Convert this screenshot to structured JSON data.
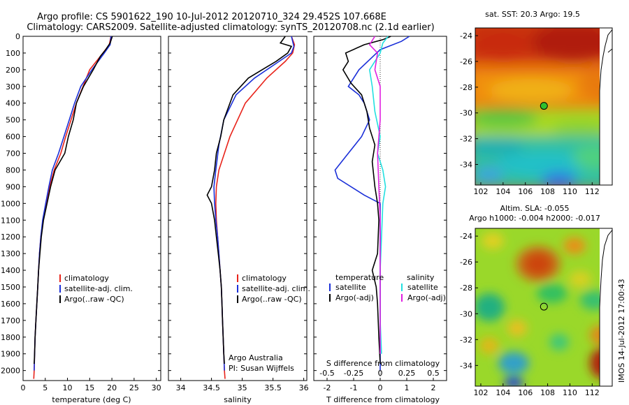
{
  "header": {
    "line1": "Argo profile: CS 5901622_190 10-Jul-2012 20120710_324 29.452S 107.668E",
    "line2": "Climatology: CARS2009. Satellite-adjusted climatology: synTS_20120708.nc (2.1d earlier)"
  },
  "side_stamp": "IMOS 14-Jul-2012 17:00:43",
  "colors": {
    "climatology": "#e8231a",
    "satellite": "#1a2fd8",
    "argo": "#000000",
    "sal_satellite": "#22e0e0",
    "sal_argo": "#e020e0"
  },
  "chart_data": [
    {
      "type": "line",
      "panel": "temperature",
      "xlabel": "temperature (deg C)",
      "xlim": [
        0,
        31
      ],
      "xticks": [
        0,
        5,
        10,
        15,
        20,
        25,
        30
      ],
      "ylim": [
        0,
        2060
      ],
      "yticks": [
        0,
        100,
        200,
        300,
        400,
        500,
        600,
        700,
        800,
        900,
        1000,
        1100,
        1200,
        1300,
        1400,
        1500,
        1600,
        1700,
        1800,
        1900,
        2000
      ],
      "y_reversed": true,
      "legend": [
        "climatology",
        "satellite-adj. clim.",
        "Argo(..raw -QC)"
      ],
      "series": [
        {
          "name": "climatology",
          "color": "climatology",
          "points": [
            [
              19.8,
              0
            ],
            [
              19.4,
              50
            ],
            [
              18.0,
              100
            ],
            [
              15.0,
              200
            ],
            [
              13.5,
              300
            ],
            [
              12.0,
              400
            ],
            [
              10.8,
              500
            ],
            [
              9.6,
              600
            ],
            [
              8.5,
              700
            ],
            [
              7.0,
              800
            ],
            [
              6.0,
              900
            ],
            [
              5.2,
              1000
            ],
            [
              4.5,
              1100
            ],
            [
              4.0,
              1200
            ],
            [
              3.7,
              1300
            ],
            [
              3.5,
              1400
            ],
            [
              3.3,
              1500
            ],
            [
              3.1,
              1600
            ],
            [
              2.9,
              1700
            ],
            [
              2.7,
              1800
            ],
            [
              2.6,
              1900
            ],
            [
              2.5,
              2000
            ],
            [
              2.4,
              2050
            ]
          ]
        },
        {
          "name": "satellite-adj. clim.",
          "color": "satellite",
          "points": [
            [
              19.8,
              0
            ],
            [
              19.6,
              50
            ],
            [
              18.3,
              100
            ],
            [
              15.5,
              200
            ],
            [
              13.0,
              300
            ],
            [
              11.6,
              400
            ],
            [
              10.4,
              500
            ],
            [
              9.2,
              600
            ],
            [
              8.0,
              700
            ],
            [
              6.6,
              800
            ],
            [
              5.8,
              900
            ],
            [
              5.1,
              1000
            ],
            [
              4.4,
              1100
            ],
            [
              4.0,
              1200
            ],
            [
              3.7,
              1300
            ],
            [
              3.5,
              1400
            ],
            [
              3.3,
              1500
            ],
            [
              3.1,
              1600
            ],
            [
              2.9,
              1700
            ],
            [
              2.7,
              1800
            ],
            [
              2.6,
              1900
            ],
            [
              2.5,
              2000
            ]
          ]
        },
        {
          "name": "Argo(..raw -QC)",
          "color": "argo",
          "points": [
            [
              20.1,
              0
            ],
            [
              19.6,
              40
            ],
            [
              18.6,
              80
            ],
            [
              17.4,
              120
            ],
            [
              15.8,
              200
            ],
            [
              13.6,
              300
            ],
            [
              12.0,
              400
            ],
            [
              11.3,
              500
            ],
            [
              10.2,
              600
            ],
            [
              9.4,
              700
            ],
            [
              7.2,
              800
            ],
            [
              6.2,
              900
            ],
            [
              5.4,
              1000
            ],
            [
              4.6,
              1100
            ],
            [
              4.1,
              1200
            ],
            [
              3.8,
              1300
            ],
            [
              3.5,
              1400
            ],
            [
              3.3,
              1500
            ],
            [
              3.1,
              1600
            ],
            [
              2.9,
              1700
            ],
            [
              2.7,
              1800
            ],
            [
              2.6,
              1900
            ],
            [
              2.5,
              1960
            ]
          ]
        }
      ]
    },
    {
      "type": "line",
      "panel": "salinity",
      "xlabel": "salinity",
      "xlim": [
        33.8,
        36.05
      ],
      "xticks": [
        34,
        34.5,
        35,
        35.5,
        36
      ],
      "ylim": [
        0,
        2060
      ],
      "y_reversed": true,
      "legend": [
        "climatology",
        "satellite-adj. clim.",
        "Argo(..raw -QC)"
      ],
      "annotation": [
        "Argo Australia",
        "PI: Susan Wijffels"
      ],
      "series": [
        {
          "name": "climatology",
          "color": "climatology",
          "points": [
            [
              35.8,
              0
            ],
            [
              35.85,
              50
            ],
            [
              35.82,
              100
            ],
            [
              35.7,
              150
            ],
            [
              35.4,
              250
            ],
            [
              35.05,
              400
            ],
            [
              34.8,
              600
            ],
            [
              34.62,
              800
            ],
            [
              34.58,
              900
            ],
            [
              34.57,
              1000
            ],
            [
              34.58,
              1100
            ],
            [
              34.6,
              1200
            ],
            [
              34.62,
              1300
            ],
            [
              34.64,
              1400
            ],
            [
              34.66,
              1500
            ],
            [
              34.67,
              1600
            ],
            [
              34.68,
              1700
            ],
            [
              34.69,
              1800
            ],
            [
              34.7,
              1900
            ],
            [
              34.71,
              2000
            ],
            [
              34.72,
              2050
            ]
          ]
        },
        {
          "name": "satellite-adj. clim.",
          "color": "satellite",
          "points": [
            [
              35.8,
              0
            ],
            [
              35.84,
              60
            ],
            [
              35.8,
              100
            ],
            [
              35.6,
              150
            ],
            [
              35.2,
              250
            ],
            [
              34.9,
              350
            ],
            [
              34.7,
              500
            ],
            [
              34.62,
              650
            ],
            [
              34.57,
              800
            ],
            [
              34.54,
              900
            ],
            [
              34.55,
              1000
            ],
            [
              34.57,
              1100
            ],
            [
              34.6,
              1200
            ],
            [
              34.62,
              1300
            ],
            [
              34.64,
              1400
            ],
            [
              34.66,
              1500
            ],
            [
              34.67,
              1600
            ],
            [
              34.68,
              1700
            ],
            [
              34.69,
              1800
            ],
            [
              34.7,
              1900
            ],
            [
              34.71,
              2000
            ]
          ]
        },
        {
          "name": "Argo(..raw -QC)",
          "color": "argo",
          "points": [
            [
              35.7,
              0
            ],
            [
              35.62,
              40
            ],
            [
              35.8,
              60
            ],
            [
              35.74,
              100
            ],
            [
              35.55,
              150
            ],
            [
              35.1,
              250
            ],
            [
              34.85,
              350
            ],
            [
              34.7,
              500
            ],
            [
              34.65,
              600
            ],
            [
              34.58,
              700
            ],
            [
              34.55,
              800
            ],
            [
              34.5,
              900
            ],
            [
              34.43,
              950
            ],
            [
              34.5,
              1000
            ],
            [
              34.55,
              1100
            ],
            [
              34.58,
              1200
            ],
            [
              34.61,
              1300
            ],
            [
              34.64,
              1400
            ],
            [
              34.66,
              1500
            ],
            [
              34.67,
              1600
            ],
            [
              34.68,
              1700
            ],
            [
              34.69,
              1800
            ],
            [
              34.7,
              1900
            ],
            [
              34.71,
              1960
            ]
          ]
        }
      ]
    },
    {
      "type": "line",
      "panel": "difference",
      "xlabel_bottom": "T difference from climatology",
      "xlabel_top": "S difference from climatology",
      "xlim": [
        -2.5,
        2.5
      ],
      "xticks": [
        -2,
        -1,
        0,
        1,
        2
      ],
      "xticks_top": [
        -0.5,
        -0.25,
        0,
        0.25,
        0.5
      ],
      "ylim": [
        0,
        2060
      ],
      "y_reversed": true,
      "zero_line": true,
      "legend_left_title": "temperature",
      "legend_right_title": "salinity",
      "legend": [
        "satellite",
        "Argo(-adj)",
        "satellite",
        "Argo(-adj)"
      ],
      "series": [
        {
          "name": "temperature satellite",
          "color": "satellite",
          "points": [
            [
              1.1,
              0
            ],
            [
              0.8,
              30
            ],
            [
              0.0,
              80
            ],
            [
              -0.8,
              200
            ],
            [
              -1.2,
              300
            ],
            [
              -0.8,
              350
            ],
            [
              -0.6,
              400
            ],
            [
              -0.4,
              500
            ],
            [
              -0.7,
              600
            ],
            [
              -1.2,
              700
            ],
            [
              -1.7,
              800
            ],
            [
              -1.6,
              850
            ],
            [
              -0.6,
              950
            ],
            [
              0.0,
              1000
            ],
            [
              0.0,
              2000
            ]
          ]
        },
        {
          "name": "temperature Argo(-adj)",
          "color": "argo",
          "points": [
            [
              0.4,
              0
            ],
            [
              0.1,
              20
            ],
            [
              -0.6,
              50
            ],
            [
              -1.3,
              100
            ],
            [
              -1.2,
              150
            ],
            [
              -1.4,
              200
            ],
            [
              -1.1,
              280
            ],
            [
              -0.7,
              350
            ],
            [
              -0.5,
              450
            ],
            [
              -0.4,
              550
            ],
            [
              -0.2,
              650
            ],
            [
              -0.3,
              750
            ],
            [
              -0.2,
              900
            ],
            [
              -0.1,
              1000
            ],
            [
              -0.05,
              1100
            ],
            [
              -0.1,
              1300
            ],
            [
              -0.3,
              1400
            ],
            [
              -0.15,
              1500
            ],
            [
              -0.1,
              1600
            ],
            [
              -0.05,
              1800
            ],
            [
              0.0,
              1960
            ]
          ]
        },
        {
          "name": "salinity satellite",
          "color": "sal_satellite",
          "points": [
            [
              0.3,
              0
            ],
            [
              0.1,
              40
            ],
            [
              0.0,
              100
            ],
            [
              -0.4,
              200
            ],
            [
              -0.3,
              300
            ],
            [
              -0.2,
              450
            ],
            [
              0.0,
              600
            ],
            [
              -0.1,
              700
            ],
            [
              0.1,
              800
            ],
            [
              0.2,
              900
            ],
            [
              0.1,
              1000
            ],
            [
              0.05,
              1200
            ],
            [
              0.0,
              1400
            ],
            [
              0.0,
              1700
            ],
            [
              0.05,
              1900
            ]
          ]
        },
        {
          "name": "salinity Argo(-adj)",
          "color": "sal_argo",
          "points": [
            [
              -0.2,
              0
            ],
            [
              -0.4,
              50
            ],
            [
              -0.1,
              100
            ],
            [
              -0.2,
              200
            ],
            [
              0.0,
              300
            ],
            [
              0.0,
              500
            ],
            [
              -0.1,
              700
            ],
            [
              -0.05,
              900
            ],
            [
              0.0,
              1100
            ],
            [
              0.0,
              1400
            ],
            [
              0.0,
              1900
            ]
          ]
        }
      ]
    },
    {
      "type": "heatmap",
      "panel": "sst_map",
      "title": "sat. SST: 20.3 Argo: 19.5",
      "xlim": [
        101.5,
        113.8
      ],
      "ylim": [
        -35.6,
        -23.4
      ],
      "xticks": [
        102,
        104,
        106,
        108,
        110,
        112
      ],
      "yticks": [
        -24,
        -26,
        -28,
        -30,
        -32,
        -34
      ],
      "marker": {
        "lon": 107.668,
        "lat": -29.452,
        "color": "#2ec02e"
      }
    },
    {
      "type": "heatmap",
      "panel": "sla_map",
      "title_line1": "Altim. SLA: -0.055",
      "title_line2": "Argo h1000: -0.004 h2000: -0.017",
      "xlim": [
        101.5,
        113.8
      ],
      "ylim": [
        -35.6,
        -23.4
      ],
      "xticks": [
        102,
        104,
        106,
        108,
        110,
        112
      ],
      "yticks": [
        -24,
        -26,
        -28,
        -30,
        -32,
        -34
      ],
      "marker": {
        "lon": 107.668,
        "lat": -29.452,
        "color": "#1a9a1a"
      }
    }
  ]
}
